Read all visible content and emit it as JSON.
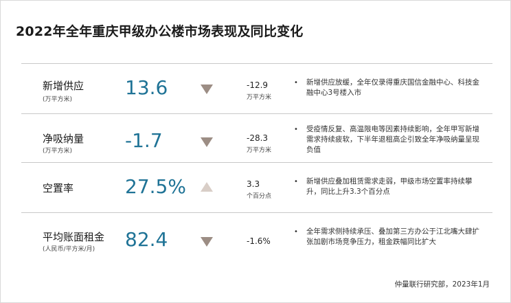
{
  "title": "2022年全年重庆甲级办公楼市场表现及同比变化",
  "colors": {
    "value": "#1f7396",
    "down_arrow": "#9c8d84",
    "up_arrow": "#d9cec7",
    "rule": "#c8c8c8"
  },
  "rows": [
    {
      "label": "新增供应",
      "unit": "(万平方米)",
      "value": "13.6",
      "direction": "down",
      "change": "-12.9",
      "change_unit": "万平方米",
      "bullet": "•",
      "note": "新增供应放缓，全年仅录得重庆国信金融中心、科技金融中心3号楼入市"
    },
    {
      "label": "净吸纳量",
      "unit": "(万平方米)",
      "value": "-1.7",
      "direction": "down",
      "change": "-28.3",
      "change_unit": "万平方米",
      "bullet": "•",
      "note": "受疫情反复、高温限电等因素持续影响，全年甲写新增需求持续疲软，下半年退租高企引致全年净吸纳量呈现负值"
    },
    {
      "label": "空置率",
      "unit": "",
      "value": "27.5%",
      "direction": "up",
      "change": "3.3",
      "change_unit": "个百分点",
      "bullet": "•",
      "note": "新增供应叠加租赁需求走弱，甲级市场空置率持续攀升，同比上升3.3个百分点"
    },
    {
      "label": "平均账面租金",
      "unit": "(人民币/平方米/月)",
      "value": "82.4",
      "direction": "down",
      "change": "-1.6%",
      "change_unit": "",
      "bullet": "•",
      "note": "全年需求侧持续承压、叠加第三方办公于江北嘴大肆扩张加剧市场竞争压力，租金跌幅同比扩大"
    }
  ],
  "source": "仲量联行研究部，2023年1月"
}
